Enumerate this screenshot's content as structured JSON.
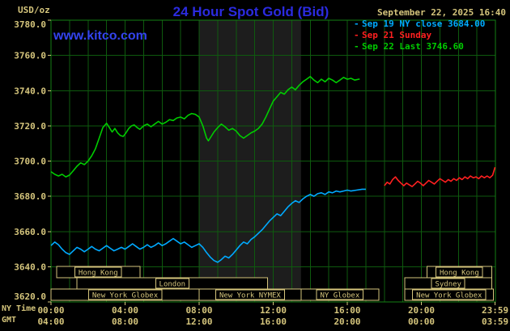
{
  "header": {
    "units_label": "USD/oz",
    "title": "24 Hour Spot Gold (Bid)",
    "datetime": "September 22, 2025 16:40",
    "watermark": "www.kitco.com"
  },
  "legend": [
    {
      "dash": "-",
      "label": "Sep 19 NY close 3684.00",
      "color": "#00aaff"
    },
    {
      "dash": "-",
      "label": "Sep 21 Sunday",
      "color": "#ff2020"
    },
    {
      "dash": "-",
      "label": "Sep 22 Last 3746.60",
      "color": "#00cc00"
    }
  ],
  "axes": {
    "ny_time_label": "NY Time",
    "gmt_label": "GMT",
    "tick_hours": [
      0,
      4,
      8,
      12,
      16,
      20,
      23.983
    ],
    "ny_ticks": [
      "00:00",
      "04:00",
      "08:00",
      "12:00",
      "16:00",
      "20:00",
      "23:59"
    ],
    "gmt_ticks": [
      "04:00",
      "08:00",
      "12:00",
      "16:00",
      "20:00",
      "00:00",
      "03:59"
    ]
  },
  "chart_data": {
    "type": "line",
    "title": "24 Hour Spot Gold (Bid)",
    "xlabel": "NY Time",
    "ylabel": "USD/oz",
    "xlim_hours": [
      0,
      24
    ],
    "ylim": [
      3620,
      3780
    ],
    "grid": true,
    "legend_position": "top-right",
    "colors": {
      "background": "#000000",
      "grid": "#0e5a0e",
      "border": "#138013",
      "shade": "#1d1d1d",
      "tan": "#d5c57c"
    },
    "y_ticks": [
      3620,
      3640,
      3660,
      3680,
      3700,
      3720,
      3740,
      3760,
      3780
    ],
    "y_tick_labels": [
      "3620.0",
      "3640.0",
      "3660.0",
      "3680.0",
      "3700.0",
      "3720.0",
      "3740.0",
      "3760.0",
      "3780.0"
    ],
    "y_gridlines": [
      3640,
      3660,
      3680,
      3700,
      3720,
      3740,
      3760
    ],
    "shade_hours": [
      8,
      13.5
    ],
    "series": [
      {
        "name": "Sep 19 NY close",
        "close_value": 3684.0,
        "color": "#00aaff",
        "points": [
          [
            0,
            3652
          ],
          [
            0.2,
            3654
          ],
          [
            0.4,
            3652.5
          ],
          [
            0.6,
            3650
          ],
          [
            0.8,
            3648
          ],
          [
            1,
            3647
          ],
          [
            1.2,
            3649
          ],
          [
            1.4,
            3651
          ],
          [
            1.6,
            3650
          ],
          [
            1.8,
            3648.5
          ],
          [
            2,
            3650
          ],
          [
            2.2,
            3651.5
          ],
          [
            2.4,
            3650
          ],
          [
            2.6,
            3649
          ],
          [
            2.8,
            3650.5
          ],
          [
            3,
            3652
          ],
          [
            3.2,
            3650.5
          ],
          [
            3.4,
            3649
          ],
          [
            3.6,
            3650
          ],
          [
            3.8,
            3651
          ],
          [
            4,
            3650
          ],
          [
            4.2,
            3651.5
          ],
          [
            4.4,
            3653
          ],
          [
            4.6,
            3651.5
          ],
          [
            4.8,
            3650
          ],
          [
            5,
            3651
          ],
          [
            5.2,
            3652.5
          ],
          [
            5.4,
            3651
          ],
          [
            5.6,
            3652
          ],
          [
            5.8,
            3653.5
          ],
          [
            6,
            3652
          ],
          [
            6.2,
            3653
          ],
          [
            6.4,
            3654.5
          ],
          [
            6.6,
            3656
          ],
          [
            6.8,
            3654.5
          ],
          [
            7,
            3653
          ],
          [
            7.2,
            3654
          ],
          [
            7.4,
            3652.5
          ],
          [
            7.6,
            3651
          ],
          [
            7.8,
            3652
          ],
          [
            8,
            3653
          ],
          [
            8.2,
            3651
          ],
          [
            8.4,
            3648
          ],
          [
            8.6,
            3645.5
          ],
          [
            8.8,
            3643.5
          ],
          [
            9,
            3642.5
          ],
          [
            9.2,
            3644
          ],
          [
            9.4,
            3646
          ],
          [
            9.6,
            3645
          ],
          [
            9.8,
            3647
          ],
          [
            10,
            3649.5
          ],
          [
            10.2,
            3652
          ],
          [
            10.4,
            3654
          ],
          [
            10.6,
            3653
          ],
          [
            10.8,
            3655.5
          ],
          [
            11,
            3657
          ],
          [
            11.2,
            3659
          ],
          [
            11.4,
            3661
          ],
          [
            11.6,
            3663.5
          ],
          [
            11.8,
            3666
          ],
          [
            12,
            3668
          ],
          [
            12.2,
            3670
          ],
          [
            12.4,
            3669
          ],
          [
            12.6,
            3671.5
          ],
          [
            12.8,
            3674
          ],
          [
            13,
            3676
          ],
          [
            13.2,
            3677.5
          ],
          [
            13.4,
            3676.5
          ],
          [
            13.6,
            3678.5
          ],
          [
            13.8,
            3680
          ],
          [
            14,
            3681
          ],
          [
            14.2,
            3680
          ],
          [
            14.4,
            3681.5
          ],
          [
            14.6,
            3682
          ],
          [
            14.8,
            3681
          ],
          [
            15,
            3682.5
          ],
          [
            15.2,
            3682
          ],
          [
            15.4,
            3683
          ],
          [
            15.6,
            3682.5
          ],
          [
            15.8,
            3683
          ],
          [
            16,
            3683.5
          ],
          [
            16.2,
            3683
          ],
          [
            16.5,
            3683.5
          ],
          [
            16.8,
            3684
          ],
          [
            17,
            3684
          ]
        ]
      },
      {
        "name": "Sep 21 Sunday",
        "color": "#ff2020",
        "points": [
          [
            18,
            3686
          ],
          [
            18.15,
            3688
          ],
          [
            18.3,
            3687
          ],
          [
            18.45,
            3689.5
          ],
          [
            18.6,
            3691
          ],
          [
            18.75,
            3689
          ],
          [
            18.9,
            3687.5
          ],
          [
            19.05,
            3686
          ],
          [
            19.2,
            3687.5
          ],
          [
            19.35,
            3686.5
          ],
          [
            19.5,
            3685.5
          ],
          [
            19.65,
            3687
          ],
          [
            19.8,
            3688.5
          ],
          [
            19.95,
            3687.5
          ],
          [
            20.1,
            3686
          ],
          [
            20.25,
            3687.5
          ],
          [
            20.4,
            3689
          ],
          [
            20.55,
            3688
          ],
          [
            20.7,
            3687
          ],
          [
            20.85,
            3688.5
          ],
          [
            21,
            3690
          ],
          [
            21.15,
            3689
          ],
          [
            21.3,
            3688
          ],
          [
            21.45,
            3689.5
          ],
          [
            21.6,
            3688.5
          ],
          [
            21.75,
            3690
          ],
          [
            21.9,
            3689
          ],
          [
            22.05,
            3690.5
          ],
          [
            22.2,
            3689.5
          ],
          [
            22.35,
            3691
          ],
          [
            22.5,
            3690
          ],
          [
            22.65,
            3691.5
          ],
          [
            22.8,
            3690.5
          ],
          [
            22.95,
            3691
          ],
          [
            23.1,
            3690
          ],
          [
            23.25,
            3691.5
          ],
          [
            23.4,
            3690.5
          ],
          [
            23.55,
            3691.5
          ],
          [
            23.7,
            3690.5
          ],
          [
            23.85,
            3692
          ],
          [
            23.98,
            3696.5
          ]
        ]
      },
      {
        "name": "Sep 22 Last",
        "last_value": 3746.6,
        "color": "#00cc00",
        "points": [
          [
            0,
            3694
          ],
          [
            0.2,
            3692.5
          ],
          [
            0.4,
            3691.5
          ],
          [
            0.6,
            3692.5
          ],
          [
            0.8,
            3691
          ],
          [
            1,
            3692
          ],
          [
            1.2,
            3694.5
          ],
          [
            1.4,
            3697
          ],
          [
            1.6,
            3699
          ],
          [
            1.8,
            3698
          ],
          [
            2,
            3700
          ],
          [
            2.2,
            3703
          ],
          [
            2.4,
            3707
          ],
          [
            2.6,
            3713
          ],
          [
            2.8,
            3719
          ],
          [
            3,
            3721.5
          ],
          [
            3.15,
            3719
          ],
          [
            3.3,
            3716.5
          ],
          [
            3.45,
            3718.5
          ],
          [
            3.6,
            3716
          ],
          [
            3.75,
            3714.5
          ],
          [
            3.9,
            3714
          ],
          [
            4.05,
            3716
          ],
          [
            4.2,
            3718.5
          ],
          [
            4.35,
            3720
          ],
          [
            4.5,
            3720.5
          ],
          [
            4.65,
            3719
          ],
          [
            4.8,
            3718
          ],
          [
            5,
            3720
          ],
          [
            5.2,
            3721
          ],
          [
            5.4,
            3719.5
          ],
          [
            5.6,
            3721
          ],
          [
            5.8,
            3722.5
          ],
          [
            6,
            3721
          ],
          [
            6.2,
            3722
          ],
          [
            6.4,
            3723.5
          ],
          [
            6.6,
            3723
          ],
          [
            6.8,
            3724.5
          ],
          [
            7,
            3725
          ],
          [
            7.2,
            3724
          ],
          [
            7.4,
            3726
          ],
          [
            7.6,
            3727
          ],
          [
            7.8,
            3726.5
          ],
          [
            8,
            3725
          ],
          [
            8.2,
            3720
          ],
          [
            8.4,
            3713
          ],
          [
            8.5,
            3711.5
          ],
          [
            8.65,
            3714
          ],
          [
            8.8,
            3716.5
          ],
          [
            9,
            3719
          ],
          [
            9.2,
            3721
          ],
          [
            9.4,
            3719.5
          ],
          [
            9.6,
            3717.5
          ],
          [
            9.8,
            3718.5
          ],
          [
            10,
            3717
          ],
          [
            10.2,
            3714.5
          ],
          [
            10.4,
            3713
          ],
          [
            10.6,
            3714.5
          ],
          [
            10.8,
            3716
          ],
          [
            11,
            3717
          ],
          [
            11.2,
            3718.5
          ],
          [
            11.4,
            3721
          ],
          [
            11.6,
            3725
          ],
          [
            11.8,
            3729.5
          ],
          [
            12,
            3734
          ],
          [
            12.2,
            3736.5
          ],
          [
            12.4,
            3739
          ],
          [
            12.6,
            3738
          ],
          [
            12.8,
            3740.5
          ],
          [
            13,
            3742
          ],
          [
            13.2,
            3740.5
          ],
          [
            13.4,
            3743
          ],
          [
            13.6,
            3745
          ],
          [
            13.8,
            3746.5
          ],
          [
            14,
            3748
          ],
          [
            14.2,
            3746
          ],
          [
            14.4,
            3744.5
          ],
          [
            14.6,
            3746.5
          ],
          [
            14.8,
            3745
          ],
          [
            15,
            3747
          ],
          [
            15.2,
            3746
          ],
          [
            15.4,
            3744.5
          ],
          [
            15.6,
            3746
          ],
          [
            15.8,
            3747.5
          ],
          [
            16,
            3746.5
          ],
          [
            16.2,
            3747
          ],
          [
            16.4,
            3746
          ],
          [
            16.67,
            3746.6
          ]
        ]
      }
    ],
    "sessions": [
      {
        "label": "Hong Kong",
        "row": 0,
        "start": 0.3,
        "end": 4.8
      },
      {
        "label": "Hong Kong",
        "row": 0,
        "start": 20.3,
        "end": 23.8
      },
      {
        "label": "London",
        "row": 1,
        "start": 1.4,
        "end": 11.7
      },
      {
        "label": "Sydney",
        "row": 1,
        "start": 19.1,
        "end": 23.8
      },
      {
        "label": "New York Globex",
        "row": 2,
        "start": 0,
        "end": 8
      },
      {
        "label": "New York NYMEX",
        "row": 2,
        "start": 8,
        "end": 13.5
      },
      {
        "label": "NY Globex",
        "row": 2,
        "start": 13.5,
        "end": 17.7
      },
      {
        "label": "New York Globex",
        "row": 2,
        "start": 19.1,
        "end": 23.9
      }
    ]
  }
}
